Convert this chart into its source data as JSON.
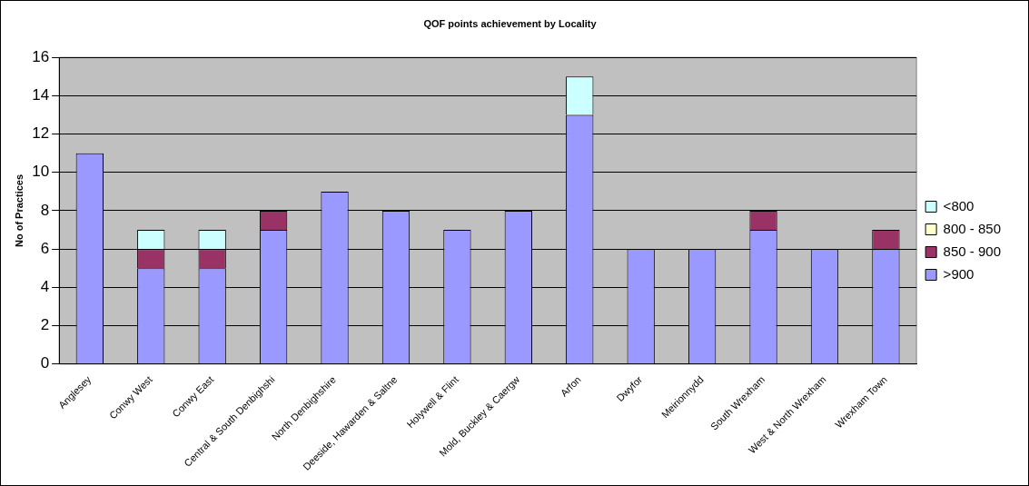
{
  "chart_data": {
    "type": "bar",
    "title": "QOF points achievement by Locality",
    "ylabel": "No of Practices",
    "categories": [
      "Anglesey",
      "Conwy West",
      "Conwy East",
      "Central & South Denbighshi",
      "North Denbighshire",
      "Deeside, Hawarden & Saltne",
      "Holywell & Flint",
      "Mold, Buckley & Caergw",
      "Arfon",
      "Dwyfor",
      "Meirionnydd",
      "South Wrexham",
      "West & North Wrexham",
      "Wrexham Town"
    ],
    "stacked": true,
    "ylim": [
      0,
      16
    ],
    "yticks": [
      0,
      2,
      4,
      6,
      8,
      10,
      12,
      14,
      16
    ],
    "grid": "y",
    "legend": "right",
    "series": [
      {
        "name": ">900",
        "color": "#9999ff",
        "values": [
          11,
          5,
          5,
          7,
          9,
          8,
          7,
          8,
          13,
          6,
          6,
          7,
          6,
          6
        ]
      },
      {
        "name": "850 - 900",
        "color": "#993366",
        "values": [
          0,
          1,
          1,
          1,
          0,
          0,
          0,
          0,
          0,
          0,
          0,
          1,
          0,
          1
        ]
      },
      {
        "name": "800 - 850",
        "color": "#ffffcc",
        "values": [
          0,
          0,
          0,
          0,
          0,
          0,
          0,
          0,
          0,
          0,
          0,
          0,
          0,
          0
        ]
      },
      {
        "name": "<800",
        "color": "#ccffff",
        "values": [
          0,
          1,
          1,
          0,
          0,
          0,
          0,
          0,
          2,
          0,
          0,
          0,
          0,
          0
        ]
      }
    ]
  }
}
